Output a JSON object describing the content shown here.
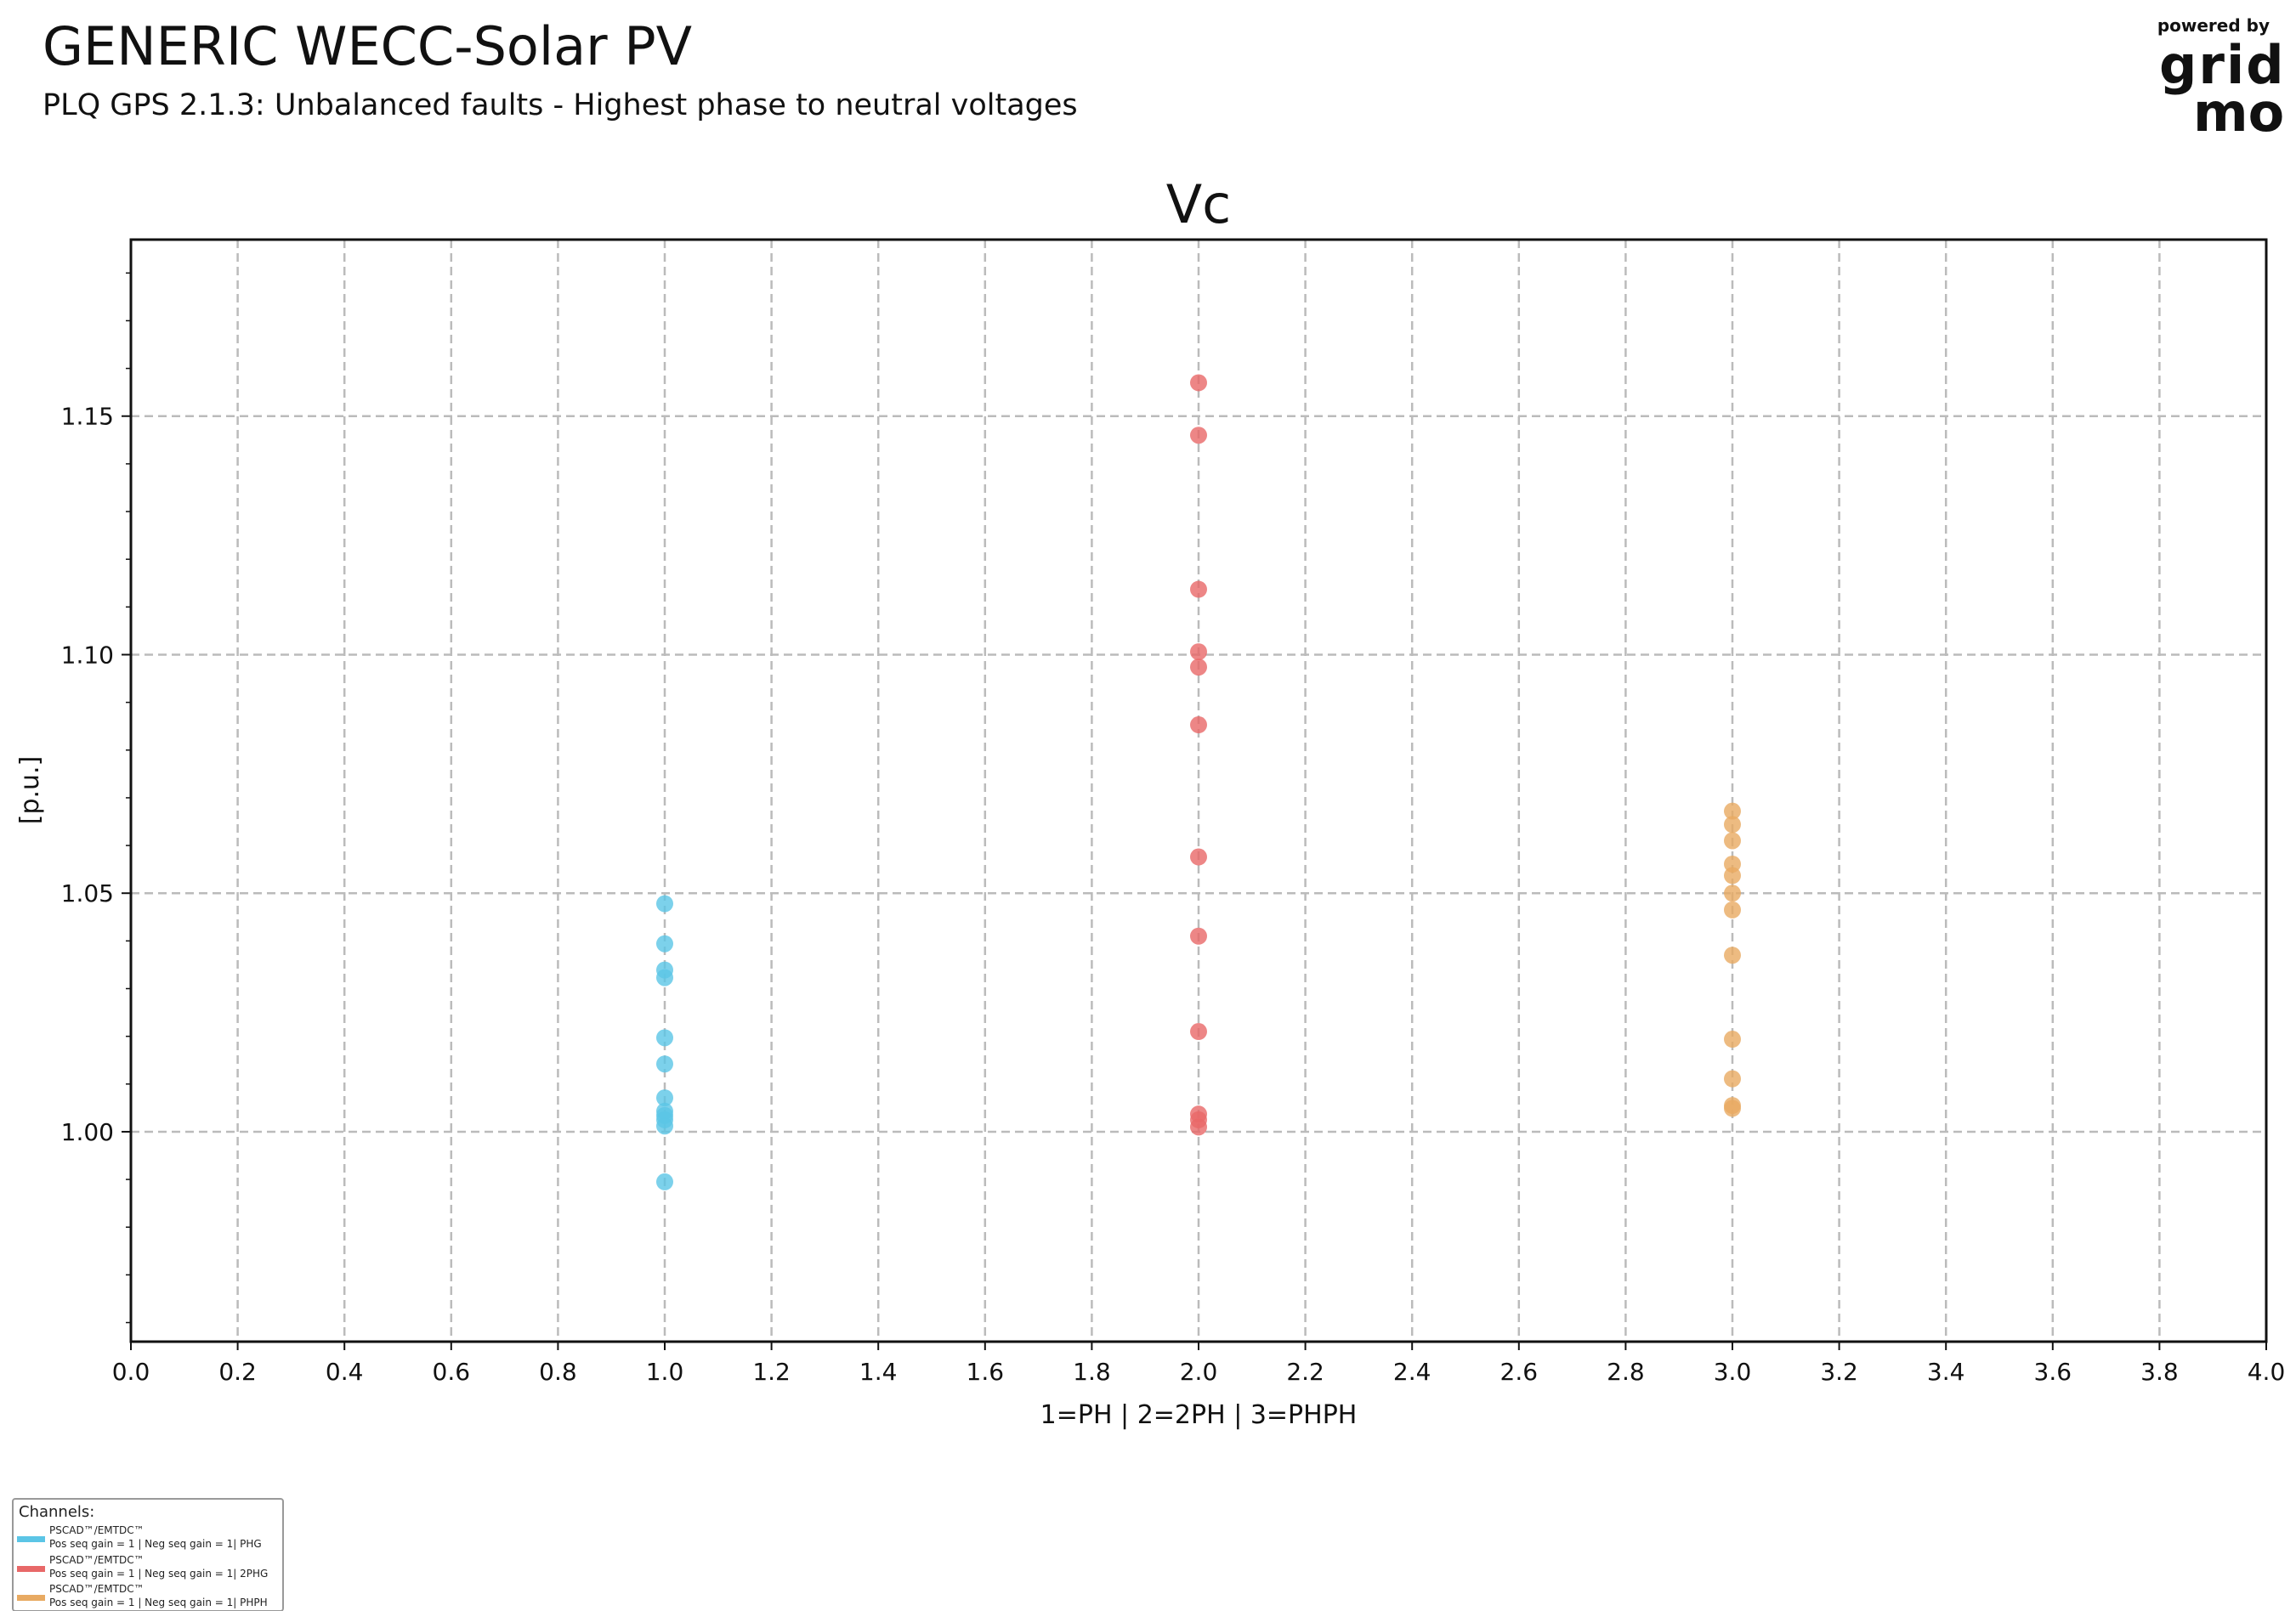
{
  "header": {
    "title": "GENERIC WECC-Solar PV",
    "subtitle": "PLQ GPS 2.1.3: Unbalanced faults - Highest phase to neutral voltages"
  },
  "logo": {
    "powered_by": "powered by",
    "line1": "grid",
    "line2": "mo"
  },
  "chart_data": {
    "type": "scatter",
    "title": "Vc",
    "xlabel": "1=PH | 2=2PH | 3=PHPH",
    "ylabel": "[p.u.]",
    "xlim": [
      0.0,
      4.0
    ],
    "ylim": [
      0.956,
      1.187
    ],
    "xticks": [
      "0.0",
      "0.2",
      "0.4",
      "0.6",
      "0.8",
      "1.0",
      "1.2",
      "1.4",
      "1.6",
      "1.8",
      "2.0",
      "2.2",
      "2.4",
      "2.6",
      "2.8",
      "3.0",
      "3.2",
      "3.4",
      "3.6",
      "3.8",
      "4.0"
    ],
    "yticks": [
      "1.00",
      "1.05",
      "1.10",
      "1.15"
    ],
    "grid": true,
    "legend_placement": "bottom-left outside",
    "series": [
      {
        "name": "PSCAD™/EMTDC™ Pos seq gain = 1 | Neg seq gain = 1| PHG",
        "color": "#5bc5e6",
        "x": 1,
        "values": [
          1.0478,
          1.0394,
          1.0339,
          1.0323,
          1.0197,
          1.0142,
          1.0071,
          1.0043,
          1.0034,
          1.0025,
          1.0012,
          0.9895
        ]
      },
      {
        "name": "PSCAD™/EMTDC™ Pos seq gain = 1 | Neg seq gain = 1| 2PHG",
        "color": "#e86868",
        "x": 2,
        "values": [
          1.157,
          1.146,
          1.1137,
          1.1006,
          1.0974,
          1.0853,
          1.0576,
          1.041,
          1.021,
          1.0037,
          1.0025,
          1.001
        ]
      },
      {
        "name": "PSCAD™/EMTDC™ Pos seq gain = 1 | Neg seq gain = 1| PHPH",
        "color": "#e8aa62",
        "x": 3,
        "values": [
          1.0672,
          1.0644,
          1.061,
          1.0561,
          1.0537,
          1.05,
          1.0465,
          1.037,
          1.0194,
          1.0111,
          1.0055,
          1.0049
        ]
      }
    ]
  },
  "legend": {
    "header": "Channels:",
    "items": [
      {
        "line1": "PSCAD™/EMTDC™",
        "line2": "Pos seq gain = 1 | Neg seq gain = 1| PHG",
        "color": "#5bc5e6"
      },
      {
        "line1": "PSCAD™/EMTDC™",
        "line2": "Pos seq gain = 1 | Neg seq gain = 1| 2PHG",
        "color": "#e86868"
      },
      {
        "line1": "PSCAD™/EMTDC™",
        "line2": "Pos seq gain = 1 | Neg seq gain = 1| PHPH",
        "color": "#e8aa62"
      }
    ]
  }
}
